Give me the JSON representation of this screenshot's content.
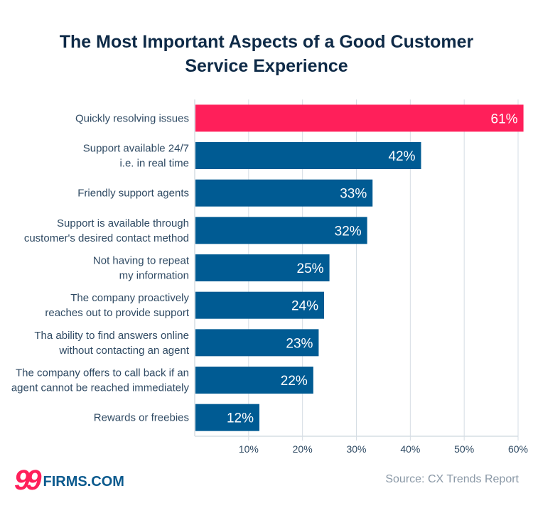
{
  "chart_data": {
    "type": "bar",
    "orientation": "horizontal",
    "title": "The Most Important Aspects of a Good Customer Service Experience",
    "title_lines": [
      "The Most Important Aspects of a Good Customer",
      "Service Experience"
    ],
    "categories": [
      [
        "Quickly resolving issues"
      ],
      [
        "Support available 24/7",
        "i.e. in real time"
      ],
      [
        "Friendly support agents"
      ],
      [
        "Support is available through",
        "customer's desired contact method"
      ],
      [
        "Not having to repeat",
        "my information"
      ],
      [
        "The company proactively",
        "reaches out to provide support"
      ],
      [
        "Tha ability to find answers online",
        "without contacting an agent"
      ],
      [
        "The company offers to call back if an",
        "agent cannot be reached immediately"
      ],
      [
        "Rewards or freebies"
      ]
    ],
    "values": [
      61,
      42,
      33,
      32,
      25,
      24,
      23,
      22,
      12
    ],
    "value_labels": [
      "61%",
      "42%",
      "33%",
      "32%",
      "25%",
      "24%",
      "23%",
      "22%",
      "12%"
    ],
    "xticks": [
      10,
      20,
      30,
      40,
      50,
      60
    ],
    "xtick_labels": [
      "10%",
      "20%",
      "30%",
      "40%",
      "50%",
      "60%"
    ],
    "xlim": [
      0,
      60
    ],
    "grid": true,
    "colors": {
      "highlight": "#ff1f5a",
      "bar": "#005b93",
      "text": "#2f4a63",
      "grid": "#d5dde4"
    }
  },
  "footer": {
    "logo_number": "99",
    "logo_text": "FIRMS.COM",
    "source": "Source: CX Trends Report"
  }
}
